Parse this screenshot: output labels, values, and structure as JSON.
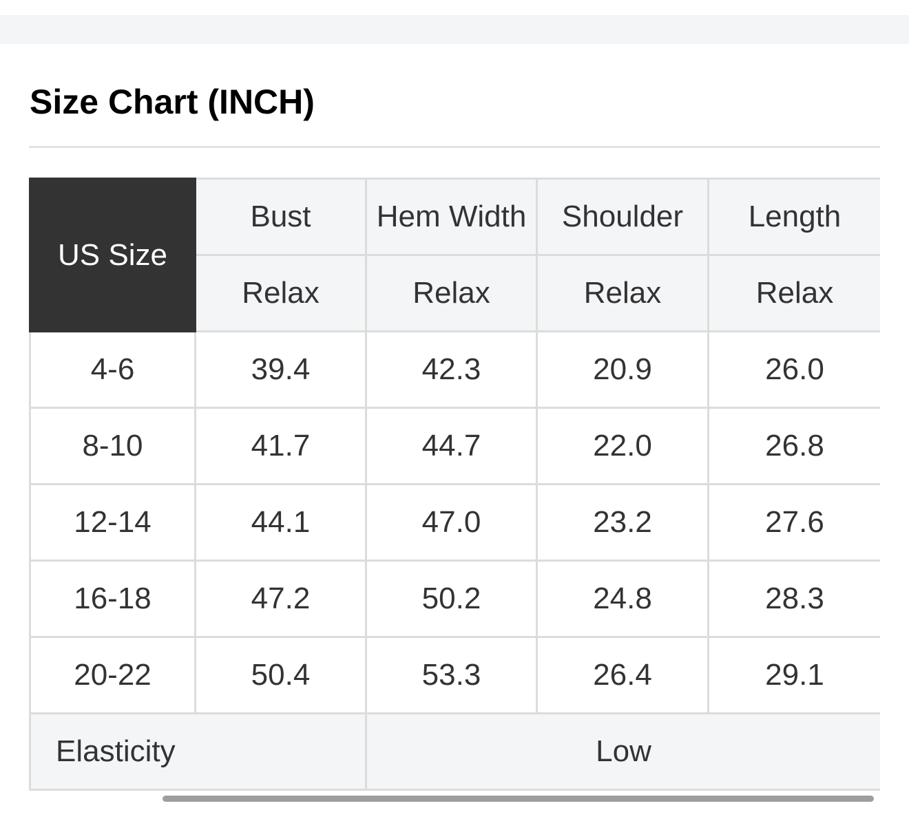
{
  "title": "Size Chart (INCH)",
  "table": {
    "corner": "US Size",
    "columns": [
      "Bust",
      "Hem Width",
      "Shoulder",
      "Length"
    ],
    "subheaders": [
      "Relax",
      "Relax",
      "Relax",
      "Relax"
    ],
    "rows": [
      {
        "size": "4-6",
        "values": [
          "39.4",
          "42.3",
          "20.9",
          "26.0"
        ]
      },
      {
        "size": "8-10",
        "values": [
          "41.7",
          "44.7",
          "22.0",
          "26.8"
        ]
      },
      {
        "size": "12-14",
        "values": [
          "44.1",
          "47.0",
          "23.2",
          "27.6"
        ]
      },
      {
        "size": "16-18",
        "values": [
          "47.2",
          "50.2",
          "24.8",
          "28.3"
        ]
      },
      {
        "size": "20-22",
        "values": [
          "50.4",
          "53.3",
          "26.4",
          "29.1"
        ]
      }
    ],
    "footer": {
      "label": "Elasticity",
      "value": "Low"
    }
  },
  "colors": {
    "header_dark": "#333333",
    "header_light": "#f4f5f7",
    "border": "#dcdcdc"
  }
}
